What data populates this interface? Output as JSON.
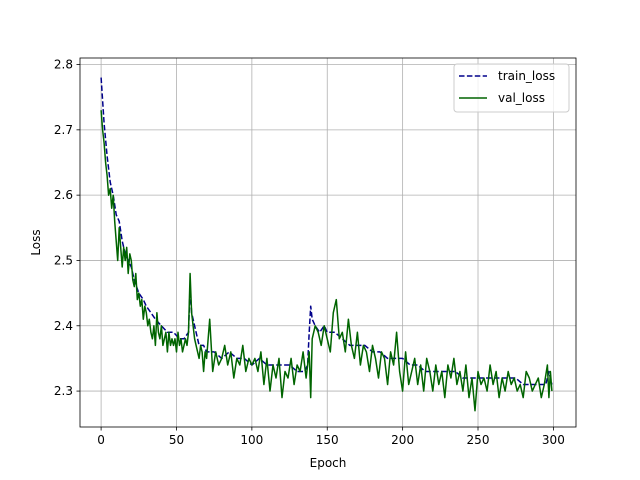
{
  "chart_data": {
    "type": "line",
    "title": "",
    "xlabel": "Epoch",
    "ylabel": "Loss",
    "xlim": [
      -14,
      315
    ],
    "ylim": [
      2.245,
      2.81
    ],
    "xticks": [
      0,
      50,
      100,
      150,
      200,
      250,
      300
    ],
    "yticks": [
      2.3,
      2.4,
      2.5,
      2.6,
      2.7,
      2.8
    ],
    "ytick_labels": [
      "2.3",
      "2.4",
      "2.5",
      "2.6",
      "2.7",
      "2.8"
    ],
    "grid": true,
    "legend": "top-right",
    "series": [
      {
        "name": "train_loss",
        "color": "#00008b",
        "style": "dashed",
        "x": [
          0,
          2,
          4,
          6,
          8,
          10,
          12,
          14,
          16,
          18,
          20,
          22,
          25,
          28,
          30,
          33,
          36,
          40,
          44,
          48,
          52,
          55,
          58,
          59,
          60,
          62,
          65,
          68,
          70,
          75,
          80,
          85,
          90,
          95,
          100,
          105,
          110,
          115,
          120,
          125,
          130,
          135,
          137,
          138,
          139,
          140,
          142,
          145,
          148,
          150,
          155,
          160,
          165,
          170,
          175,
          180,
          185,
          190,
          195,
          200,
          205,
          210,
          215,
          220,
          225,
          230,
          235,
          240,
          245,
          250,
          255,
          260,
          265,
          270,
          275,
          280,
          285,
          290,
          293,
          295,
          297,
          299
        ],
        "y": [
          2.78,
          2.71,
          2.66,
          2.62,
          2.6,
          2.57,
          2.56,
          2.53,
          2.51,
          2.5,
          2.49,
          2.47,
          2.45,
          2.44,
          2.43,
          2.42,
          2.41,
          2.4,
          2.39,
          2.39,
          2.38,
          2.38,
          2.39,
          2.46,
          2.42,
          2.4,
          2.37,
          2.37,
          2.36,
          2.36,
          2.35,
          2.36,
          2.35,
          2.35,
          2.34,
          2.35,
          2.34,
          2.34,
          2.34,
          2.34,
          2.33,
          2.33,
          2.34,
          2.39,
          2.43,
          2.41,
          2.4,
          2.39,
          2.4,
          2.39,
          2.39,
          2.38,
          2.37,
          2.37,
          2.37,
          2.36,
          2.36,
          2.35,
          2.35,
          2.35,
          2.34,
          2.34,
          2.33,
          2.33,
          2.33,
          2.33,
          2.33,
          2.32,
          2.32,
          2.32,
          2.32,
          2.32,
          2.32,
          2.32,
          2.32,
          2.31,
          2.31,
          2.31,
          2.31,
          2.31,
          2.33,
          2.31
        ]
      },
      {
        "name": "val_loss",
        "color": "#006400",
        "style": "solid",
        "x": [
          0,
          1,
          2,
          3,
          4,
          5,
          6,
          7,
          8,
          9,
          10,
          11,
          12,
          13,
          14,
          15,
          16,
          17,
          18,
          19,
          20,
          21,
          22,
          23,
          24,
          25,
          26,
          27,
          28,
          29,
          30,
          31,
          32,
          33,
          34,
          35,
          36,
          37,
          38,
          39,
          40,
          41,
          42,
          43,
          44,
          45,
          46,
          47,
          48,
          49,
          50,
          51,
          52,
          53,
          54,
          55,
          56,
          57,
          58,
          59,
          60,
          61,
          62,
          63,
          64,
          65,
          66,
          67,
          68,
          69,
          70,
          72,
          74,
          76,
          78,
          80,
          82,
          84,
          86,
          88,
          90,
          92,
          94,
          96,
          98,
          100,
          102,
          104,
          106,
          108,
          110,
          112,
          114,
          116,
          118,
          120,
          122,
          124,
          126,
          128,
          130,
          132,
          134,
          136,
          138,
          139,
          140,
          142,
          144,
          146,
          148,
          150,
          152,
          154,
          156,
          158,
          160,
          162,
          164,
          166,
          168,
          170,
          172,
          174,
          176,
          178,
          180,
          182,
          184,
          186,
          188,
          190,
          192,
          194,
          196,
          198,
          200,
          202,
          204,
          206,
          208,
          210,
          212,
          214,
          216,
          218,
          220,
          222,
          224,
          226,
          228,
          230,
          232,
          234,
          236,
          238,
          240,
          242,
          244,
          246,
          248,
          250,
          252,
          254,
          256,
          258,
          260,
          262,
          264,
          266,
          268,
          270,
          272,
          274,
          276,
          278,
          280,
          282,
          284,
          286,
          288,
          290,
          292,
          294,
          296,
          297,
          298,
          299
        ],
        "y": [
          2.73,
          2.7,
          2.68,
          2.65,
          2.63,
          2.6,
          2.61,
          2.58,
          2.6,
          2.56,
          2.53,
          2.5,
          2.55,
          2.52,
          2.49,
          2.52,
          2.5,
          2.52,
          2.48,
          2.51,
          2.5,
          2.47,
          2.46,
          2.48,
          2.44,
          2.45,
          2.43,
          2.44,
          2.41,
          2.43,
          2.42,
          2.4,
          2.41,
          2.39,
          2.38,
          2.4,
          2.37,
          2.42,
          2.39,
          2.38,
          2.4,
          2.37,
          2.38,
          2.39,
          2.36,
          2.39,
          2.37,
          2.38,
          2.37,
          2.38,
          2.36,
          2.39,
          2.37,
          2.38,
          2.36,
          2.37,
          2.38,
          2.37,
          2.39,
          2.48,
          2.42,
          2.4,
          2.38,
          2.37,
          2.36,
          2.35,
          2.37,
          2.36,
          2.33,
          2.36,
          2.35,
          2.41,
          2.33,
          2.36,
          2.34,
          2.35,
          2.37,
          2.34,
          2.36,
          2.32,
          2.35,
          2.34,
          2.37,
          2.33,
          2.35,
          2.34,
          2.35,
          2.33,
          2.36,
          2.31,
          2.35,
          2.3,
          2.34,
          2.32,
          2.35,
          2.29,
          2.33,
          2.32,
          2.35,
          2.31,
          2.34,
          2.33,
          2.36,
          2.32,
          2.36,
          2.29,
          2.38,
          2.4,
          2.39,
          2.37,
          2.4,
          2.38,
          2.36,
          2.42,
          2.44,
          2.38,
          2.39,
          2.36,
          2.41,
          2.37,
          2.35,
          2.39,
          2.34,
          2.37,
          2.36,
          2.33,
          2.37,
          2.35,
          2.32,
          2.36,
          2.35,
          2.31,
          2.36,
          2.34,
          2.39,
          2.33,
          2.3,
          2.36,
          2.31,
          2.33,
          2.35,
          2.31,
          2.34,
          2.3,
          2.35,
          2.33,
          2.3,
          2.34,
          2.31,
          2.33,
          2.29,
          2.34,
          2.32,
          2.35,
          2.31,
          2.33,
          2.3,
          2.34,
          2.29,
          2.32,
          2.27,
          2.33,
          2.31,
          2.32,
          2.3,
          2.34,
          2.31,
          2.33,
          2.29,
          2.32,
          2.3,
          2.33,
          2.31,
          2.32,
          2.3,
          2.31,
          2.29,
          2.33,
          2.32,
          2.3,
          2.31,
          2.32,
          2.29,
          2.31,
          2.34,
          2.29,
          2.33,
          2.3
        ]
      }
    ]
  }
}
